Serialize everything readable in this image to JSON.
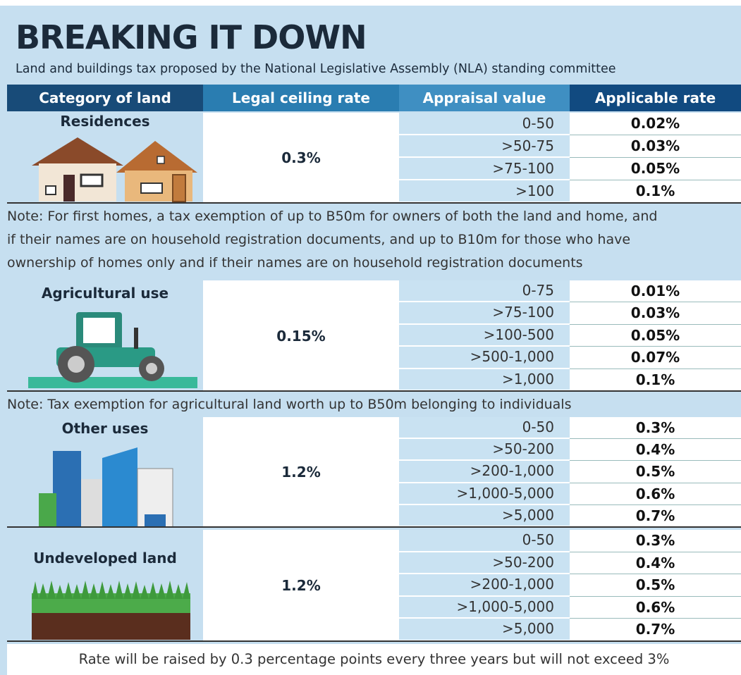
{
  "header": {
    "title": "BREAKING IT DOWN",
    "subtitle": "Land and buildings tax proposed by the National Legislative Assembly (NLA) standing committee"
  },
  "table": {
    "columns": [
      "Category of land",
      "Legal ceiling  rate",
      "Appraisal value",
      "Applicable rate"
    ],
    "sections": [
      {
        "category": "Residences",
        "ceiling": "0.3%",
        "rows": [
          [
            "0-50",
            "0.02%"
          ],
          [
            ">50-75",
            "0.03%"
          ],
          [
            ">75-100",
            "0.05%"
          ],
          [
            ">100",
            "0.1%"
          ]
        ],
        "note": [
          "Note: For first homes, a tax exemption of up to B50m for owners of both the land and home, and",
          "if their names are on household registration documents, and up to B10m for those who have",
          "ownership of homes only and if their names are on household registration documents"
        ]
      },
      {
        "category": "Agricultural use",
        "ceiling": "0.15%",
        "rows": [
          [
            "0-75",
            "0.01%"
          ],
          [
            ">75-100",
            "0.03%"
          ],
          [
            ">100-500",
            "0.05%"
          ],
          [
            ">500-1,000",
            "0.07%"
          ],
          [
            ">1,000",
            "0.1%"
          ]
        ],
        "note": [
          "Note: Tax exemption for agricultural land worth up to B50m belonging to individuals"
        ]
      },
      {
        "category": "Other uses",
        "ceiling": "1.2%",
        "rows": [
          [
            "0-50",
            "0.3%"
          ],
          [
            ">50-200",
            "0.4%"
          ],
          [
            ">200-1,000",
            "0.5%"
          ],
          [
            ">1,000-5,000",
            "0.6%"
          ],
          [
            ">5,000",
            "0.7%"
          ]
        ]
      },
      {
        "category": "Undeveloped land",
        "ceiling": "1.2%",
        "rows": [
          [
            "0-50",
            "0.3%"
          ],
          [
            ">50-200",
            "0.4%"
          ],
          [
            ">200-1,000",
            "0.5%"
          ],
          [
            ">1,000-5,000",
            "0.6%"
          ],
          [
            ">5,000",
            "0.7%"
          ]
        ]
      }
    ]
  },
  "footer": "Rate will be raised by 0.3 percentage points every three years but will not exceed 3%"
}
